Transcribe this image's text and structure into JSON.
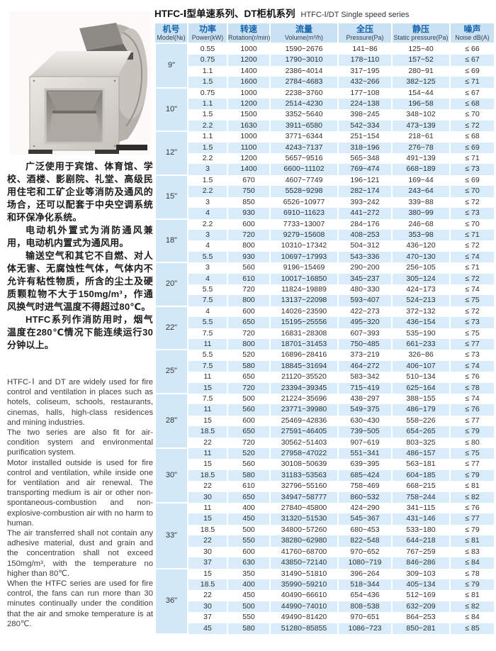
{
  "page": {
    "title_zh": "HTFC-Ⅰ型单速系列、DT柜机系列",
    "title_en": "HTFC-Ⅰ/DT Single speed series"
  },
  "photo": {
    "label": "HTFC cabinet centrifugal fan photo"
  },
  "description_zh": [
    "广泛使用于宾馆、体育馆、学校、酒楼、影剧院、礼堂、高级民用住宅和工矿企业等消防及通风的场合，还可以配套于中央空调系统和环保净化系统。",
    "电动机外置式为消防通风兼用，电动机内置式为通风用。",
    "输送空气和其它不自燃、对人体无害、无腐蚀性气体，气体内不允许有粘性物质，所含的尘土及硬质颗粒物不大于150mg/m³，作通风换气时进气温度不得超过80℃。",
    "HTFC系列作消防用时，烟气温度在280℃情况下能连续运行30分钟以上。"
  ],
  "description_en": [
    "HTFC-Ⅰ and DT are widely used for fire control and ventilation in places such as hotels, coliseum, schools, restaurants, cinemas, halls, high-class residences and mining industries.",
    "The two series are also fit for air-condition system and environmental purification system.",
    "Motor installed outside is used for fire control and ventilation, while inside one for ventilation and air renewal. The transporting medium is air or other non-spontaneous-combustion and non-explosive-combustion air with no harm to human.",
    "The air transferred shall not contain any adhesive material, dust and grain and the concentration shall not exceed 150mg/m³, with the temperature no higher than 80℃.",
    "When the HTFC series are used for fire control, the fans can run more than 30 minutes continually under the condition that the air and smoke temperature is at 280℃."
  ],
  "colors": {
    "header_bg": "#c8e2f4",
    "header_text_zh": "#1763ae",
    "row_tint": "#d9ecf9",
    "model_cell_bg": "#d2e8f7"
  },
  "table": {
    "headers": [
      {
        "zh": "机号",
        "en": "Model(№)"
      },
      {
        "zh": "功率",
        "en": "Power(kW)"
      },
      {
        "zh": "转速",
        "en": "Rotation(r/min)"
      },
      {
        "zh": "流量",
        "en": "Volume(m³/h)"
      },
      {
        "zh": "全压",
        "en": "Pressure(Pa)"
      },
      {
        "zh": "静压",
        "en": "Static pressure(Pa)"
      },
      {
        "zh": "噪声",
        "en": "Noise dB(A)"
      }
    ],
    "groups": [
      {
        "model": "9\"",
        "rows": [
          [
            "0.55",
            "1000",
            "1590~2676",
            "141~86",
            "125~40",
            "≤ 66"
          ],
          [
            "0.75",
            "1200",
            "1790~3010",
            "178~110",
            "157~52",
            "≤ 67"
          ],
          [
            "1.1",
            "1400",
            "2386~4014",
            "317~195",
            "280~91",
            "≤ 69"
          ],
          [
            "1.5",
            "1600",
            "2784~4683",
            "432~266",
            "382~125",
            "≤ 71"
          ]
        ]
      },
      {
        "model": "10\"",
        "rows": [
          [
            "0.75",
            "1000",
            "2238~3760",
            "177~108",
            "154~44",
            "≤ 67"
          ],
          [
            "1.1",
            "1200",
            "2514~4230",
            "224~138",
            "196~58",
            "≤ 68"
          ],
          [
            "1.5",
            "1500",
            "3352~5640",
            "398~245",
            "348~102",
            "≤ 70"
          ],
          [
            "2.2",
            "1630",
            "3911~6580",
            "542~334",
            "473~139",
            "≤ 72"
          ]
        ]
      },
      {
        "model": "12\"",
        "rows": [
          [
            "1.1",
            "1000",
            "3771~6344",
            "251~154",
            "218~61",
            "≤ 68"
          ],
          [
            "1.5",
            "1100",
            "4243~7137",
            "318~196",
            "276~78",
            "≤ 69"
          ],
          [
            "2.2",
            "1200",
            "5657~9516",
            "565~348",
            "491~139",
            "≤ 71"
          ],
          [
            "3",
            "1400",
            "6600~11102",
            "769~474",
            "668~189",
            "≤ 73"
          ]
        ]
      },
      {
        "model": "15\"",
        "rows": [
          [
            "1.5",
            "670",
            "4607~7749",
            "196~121",
            "169~44",
            "≤ 69"
          ],
          [
            "2.2",
            "750",
            "5528~9298",
            "282~174",
            "243~64",
            "≤ 70"
          ],
          [
            "3",
            "850",
            "6526~10977",
            "393~242",
            "339~88",
            "≤ 72"
          ],
          [
            "4",
            "930",
            "6910~11623",
            "441~272",
            "380~99",
            "≤ 73"
          ]
        ]
      },
      {
        "model": "18\"",
        "rows": [
          [
            "2.2",
            "600",
            "7733~13007",
            "284~176",
            "246~68",
            "≤ 70"
          ],
          [
            "3",
            "720",
            "9279~15608",
            "408~253",
            "353~98",
            "≤ 71"
          ],
          [
            "4",
            "800",
            "10310~17342",
            "504~312",
            "436~120",
            "≤ 72"
          ],
          [
            "5.5",
            "930",
            "10697~17993",
            "543~336",
            "470~130",
            "≤ 74"
          ]
        ]
      },
      {
        "model": "20\"",
        "rows": [
          [
            "3",
            "560",
            "9196~15469",
            "290~200",
            "256~105",
            "≤ 71"
          ],
          [
            "4",
            "610",
            "10017~16850",
            "345~237",
            "305~124",
            "≤ 72"
          ],
          [
            "5.5",
            "720",
            "11824~19889",
            "480~330",
            "424~173",
            "≤ 74"
          ],
          [
            "7.5",
            "800",
            "13137~22098",
            "593~407",
            "524~213",
            "≤ 75"
          ]
        ]
      },
      {
        "model": "22\"",
        "rows": [
          [
            "4",
            "600",
            "14026~23590",
            "422~273",
            "372~132",
            "≤ 72"
          ],
          [
            "5.5",
            "650",
            "15195~25556",
            "495~320",
            "436~154",
            "≤ 73"
          ],
          [
            "7.5",
            "720",
            "16831~28308",
            "607~393",
            "535~190",
            "≤ 75"
          ],
          [
            "11",
            "800",
            "18701~31453",
            "750~485",
            "661~233",
            "≤ 77"
          ]
        ]
      },
      {
        "model": "25\"",
        "rows": [
          [
            "5.5",
            "520",
            "16896~28416",
            "373~219",
            "326~86",
            "≤ 73"
          ],
          [
            "7.5",
            "580",
            "18845~31694",
            "464~272",
            "406~107",
            "≤ 74"
          ],
          [
            "11",
            "650",
            "21120~35520",
            "583~342",
            "510~134",
            "≤ 76"
          ],
          [
            "15",
            "720",
            "23394~39345",
            "715~419",
            "625~164",
            "≤ 78"
          ]
        ]
      },
      {
        "model": "28\"",
        "rows": [
          [
            "7.5",
            "500",
            "21224~35696",
            "438~297",
            "388~155",
            "≤ 74"
          ],
          [
            "11",
            "560",
            "23771~39980",
            "549~375",
            "486~179",
            "≤ 76"
          ],
          [
            "15",
            "600",
            "25469~42836",
            "630~430",
            "558~226",
            "≤ 77"
          ],
          [
            "18.5",
            "650",
            "27591~46405",
            "739~505",
            "654~265",
            "≤ 79"
          ],
          [
            "22",
            "720",
            "30562~51403",
            "907~619",
            "803~325",
            "≤ 80"
          ]
        ]
      },
      {
        "model": "30\"",
        "rows": [
          [
            "11",
            "520",
            "27958~47022",
            "551~341",
            "486~157",
            "≤ 75"
          ],
          [
            "15",
            "560",
            "30108~50639",
            "639~395",
            "563~181",
            "≤ 77"
          ],
          [
            "18.5",
            "580",
            "31183~53563",
            "685~424",
            "604~185",
            "≤ 79"
          ],
          [
            "22",
            "610",
            "32796~55160",
            "758~469",
            "668~215",
            "≤ 81"
          ],
          [
            "30",
            "650",
            "34947~58777",
            "860~532",
            "758~244",
            "≤ 82"
          ]
        ]
      },
      {
        "model": "33\"",
        "rows": [
          [
            "11",
            "400",
            "27840~45800",
            "424~290",
            "341~115",
            "≤ 76"
          ],
          [
            "15",
            "450",
            "31320~51530",
            "545~367",
            "431~146",
            "≤ 77"
          ],
          [
            "18.5",
            "500",
            "34800~57260",
            "680~453",
            "533~180",
            "≤ 79"
          ],
          [
            "22",
            "550",
            "38280~62980",
            "822~548",
            "644~218",
            "≤ 81"
          ],
          [
            "30",
            "600",
            "41760~68700",
            "970~652",
            "767~259",
            "≤ 83"
          ],
          [
            "37",
            "630",
            "43850~72140",
            "1080~719",
            "846~286",
            "≤ 84"
          ]
        ]
      },
      {
        "model": "36\"",
        "rows": [
          [
            "15",
            "350",
            "31490~51810",
            "396~264",
            "309~103",
            "≤ 78"
          ],
          [
            "18.5",
            "400",
            "35990~59210",
            "518~344",
            "405~134",
            "≤ 79"
          ],
          [
            "22",
            "450",
            "40490~66610",
            "654~436",
            "512~169",
            "≤ 81"
          ],
          [
            "30",
            "500",
            "44990~74010",
            "808~538",
            "632~209",
            "≤ 82"
          ],
          [
            "37",
            "550",
            "49490~81420",
            "970~651",
            "864~253",
            "≤ 84"
          ],
          [
            "45",
            "580",
            "51280~85855",
            "1086~723",
            "850~281",
            "≤ 85"
          ]
        ]
      }
    ]
  }
}
